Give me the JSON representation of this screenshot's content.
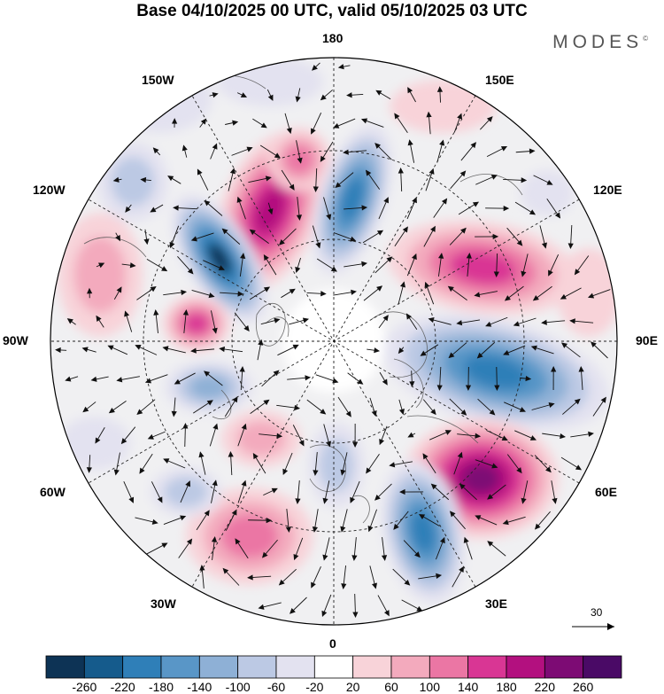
{
  "title": "Base 04/10/2025 00 UTC, valid 05/10/2025 03 UTC",
  "brand": "MODES",
  "brand_mark": "©",
  "meridian_labels": {
    "m180": "180",
    "m150w": "150W",
    "m150e": "150E",
    "m120w": "120W",
    "m120e": "120E",
    "m90w": "90W",
    "m90e": "90E",
    "m60w": "60W",
    "m60e": "60E",
    "m30w": "30W",
    "m30e": "30E",
    "m0": "0"
  },
  "reference_vector": "30",
  "colorbar": {
    "labels": [
      "-260",
      "-220",
      "-180",
      "-140",
      "-100",
      "-60",
      "-20",
      "20",
      "60",
      "100",
      "140",
      "180",
      "220",
      "260"
    ],
    "colors": [
      "#0d3355",
      "#155b8c",
      "#2f7fb8",
      "#5996c7",
      "#8eb0d6",
      "#bcc9e4",
      "#e3e2f0",
      "#ffffff",
      "#f8d3d9",
      "#f3aabd",
      "#eb76a4",
      "#d93694",
      "#b3107f",
      "#7d0b74",
      "#4a0a66"
    ]
  }
}
